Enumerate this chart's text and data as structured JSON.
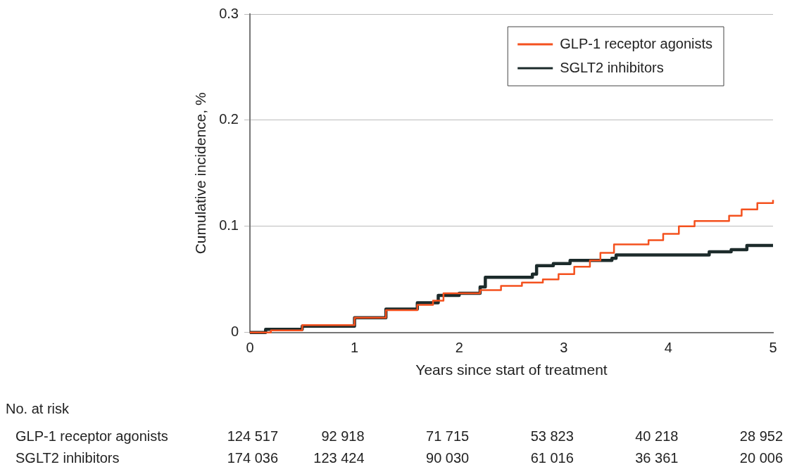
{
  "chart_data": {
    "type": "step",
    "xlabel": "Years since start of treatment",
    "ylabel": "Cumulative incidence, %",
    "xlim": [
      0,
      5
    ],
    "xticks": [
      0,
      1,
      2,
      3,
      4,
      5
    ],
    "ylim": [
      0,
      0.3
    ],
    "yticks": [
      0,
      0.1,
      0.2,
      0.3
    ],
    "grid": "y",
    "legend": "top right",
    "marker": "none",
    "line_style": "solid",
    "series": [
      {
        "name": "GLP-1 receptor agonists",
        "color": "#f4511e",
        "x": [
          0,
          0.2,
          0.5,
          1,
          1.3,
          1.6,
          1.75,
          1.85,
          2.2,
          2.4,
          2.6,
          2.8,
          2.95,
          3.1,
          3.25,
          3.35,
          3.48,
          3.81,
          3.95,
          4.1,
          4.25,
          4.58,
          4.7,
          4.85,
          5
        ],
        "values": [
          0,
          0.002,
          0.007,
          0.014,
          0.021,
          0.026,
          0.03,
          0.037,
          0.04,
          0.044,
          0.047,
          0.05,
          0.055,
          0.062,
          0.068,
          0.075,
          0.083,
          0.087,
          0.093,
          0.1,
          0.105,
          0.11,
          0.116,
          0.122,
          0.125
        ]
      },
      {
        "name": "SGLT2 inhibitors",
        "color": "#1c2b2b",
        "x": [
          0,
          0.15,
          0.5,
          1,
          1.3,
          1.6,
          1.8,
          2.0,
          2.2,
          2.25,
          2.7,
          2.74,
          2.9,
          3.06,
          3.46,
          3.5,
          4.39,
          4.6,
          4.75,
          5
        ],
        "values": [
          0,
          0.003,
          0.006,
          0.014,
          0.022,
          0.028,
          0.035,
          0.037,
          0.043,
          0.052,
          0.055,
          0.063,
          0.065,
          0.068,
          0.07,
          0.073,
          0.076,
          0.078,
          0.082,
          0.082
        ]
      }
    ],
    "annotations": [
      "No. at risk",
      "GLP-1 receptor agonists",
      "124 517",
      "92 918",
      "71 715",
      "53 823",
      "40 218",
      "28 952",
      "SGLT2 inhibitors",
      "174 036",
      "123 424",
      "90 030",
      "61 016",
      "36 361",
      "20 006"
    ]
  }
}
